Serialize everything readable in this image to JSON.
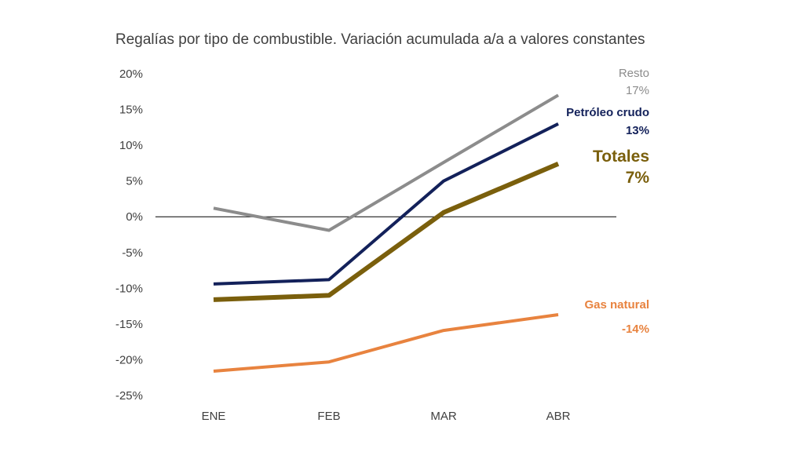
{
  "chart_data": {
    "type": "line",
    "title": "Regalías por tipo de combustible. Variación acumulada a/a a valores constantes",
    "categories": [
      "ENE",
      "FEB",
      "MAR",
      "ABR"
    ],
    "ylim": [
      -25,
      20
    ],
    "yticks": [
      20,
      15,
      10,
      5,
      0,
      -5,
      -10,
      -15,
      -20,
      -25
    ],
    "ytick_labels": [
      "20%",
      "15%",
      "10%",
      "5%",
      "0%",
      "-5%",
      "-10%",
      "-15%",
      "-20%",
      "-25%"
    ],
    "grid": false,
    "series": [
      {
        "name": "Resto",
        "value_label": "17%",
        "color": "#8c8c8c",
        "values": [
          1.2,
          -1.9,
          7.6,
          17.0
        ]
      },
      {
        "name": "Petróleo crudo",
        "value_label": "13%",
        "color": "#13215a",
        "values": [
          -9.4,
          -8.8,
          5.0,
          13.0
        ]
      },
      {
        "name": "Totales",
        "value_label": "7%",
        "color": "#7a5f0c",
        "values": [
          -11.6,
          -11.0,
          0.6,
          7.4
        ]
      },
      {
        "name": "Gas natural",
        "value_label": "-14%",
        "color": "#e8833f",
        "values": [
          -21.6,
          -20.3,
          -15.9,
          -13.7
        ]
      }
    ]
  }
}
